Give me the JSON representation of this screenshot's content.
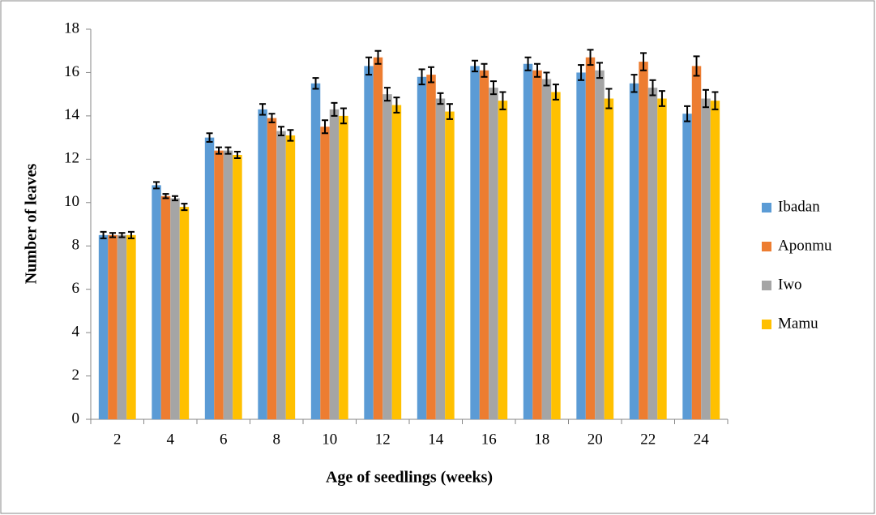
{
  "chart_data": {
    "type": "bar",
    "x_label": "Age of seedlings (weeks)",
    "y_label": "Number of leaves",
    "categories": [
      "2",
      "4",
      "6",
      "8",
      "10",
      "12",
      "14",
      "16",
      "18",
      "20",
      "22",
      "24"
    ],
    "series": [
      {
        "name": "Ibadan",
        "color": "#5b9bd5",
        "values": [
          8.5,
          10.8,
          13.0,
          14.3,
          15.5,
          16.3,
          15.8,
          16.3,
          16.4,
          16.0,
          15.5,
          14.1
        ],
        "errors": [
          0.15,
          0.15,
          0.2,
          0.25,
          0.25,
          0.4,
          0.35,
          0.25,
          0.3,
          0.35,
          0.4,
          0.35
        ]
      },
      {
        "name": "Aponmu",
        "color": "#ed7d31",
        "values": [
          8.5,
          10.3,
          12.4,
          13.9,
          13.5,
          16.7,
          15.9,
          16.1,
          16.1,
          16.7,
          16.5,
          16.3
        ],
        "errors": [
          0.1,
          0.1,
          0.15,
          0.2,
          0.3,
          0.3,
          0.35,
          0.3,
          0.3,
          0.35,
          0.4,
          0.45
        ]
      },
      {
        "name": "Iwo",
        "color": "#a5a5a5",
        "values": [
          8.5,
          10.2,
          12.4,
          13.3,
          14.3,
          15.0,
          14.8,
          15.3,
          15.7,
          16.1,
          15.3,
          14.8
        ],
        "errors": [
          0.1,
          0.1,
          0.15,
          0.2,
          0.3,
          0.3,
          0.25,
          0.3,
          0.3,
          0.35,
          0.35,
          0.4
        ]
      },
      {
        "name": "Mamu",
        "color": "#ffc000",
        "values": [
          8.5,
          9.8,
          12.2,
          13.1,
          14.0,
          14.5,
          14.2,
          14.7,
          15.1,
          14.8,
          14.8,
          14.7
        ],
        "errors": [
          0.15,
          0.15,
          0.15,
          0.25,
          0.35,
          0.35,
          0.35,
          0.4,
          0.35,
          0.45,
          0.35,
          0.4
        ]
      }
    ],
    "ylim": [
      0,
      18
    ],
    "yticks": [
      0,
      2,
      4,
      6,
      8,
      10,
      12,
      14,
      16,
      18
    ],
    "grid": false,
    "legend": "right"
  }
}
